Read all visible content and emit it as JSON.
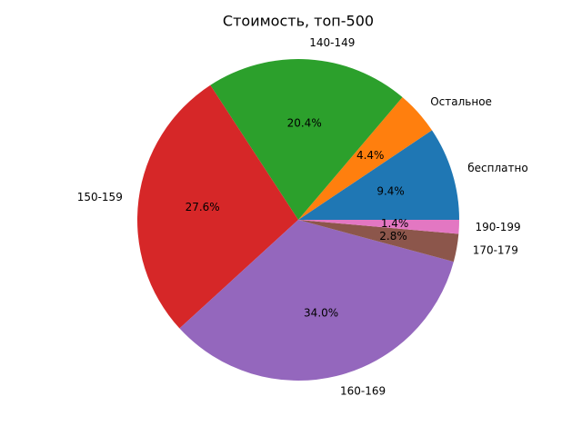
{
  "chart_data": {
    "type": "pie",
    "title": "Стоимость, топ-500",
    "categories": [
      "бесплатно",
      "Остальное",
      "140-149",
      "150-159",
      "160-169",
      "170-179",
      "190-199"
    ],
    "values": [
      9.4,
      4.4,
      20.4,
      27.6,
      34.0,
      2.8,
      1.4
    ],
    "value_labels": [
      "9.4%",
      "4.4%",
      "20.4%",
      "27.6%",
      "34.0%",
      "2.8%",
      "1.4%"
    ],
    "colors": [
      "#1f77b4",
      "#ff7f0e",
      "#2ca02c",
      "#d62728",
      "#9467bd",
      "#8c564b",
      "#e377c2"
    ]
  }
}
